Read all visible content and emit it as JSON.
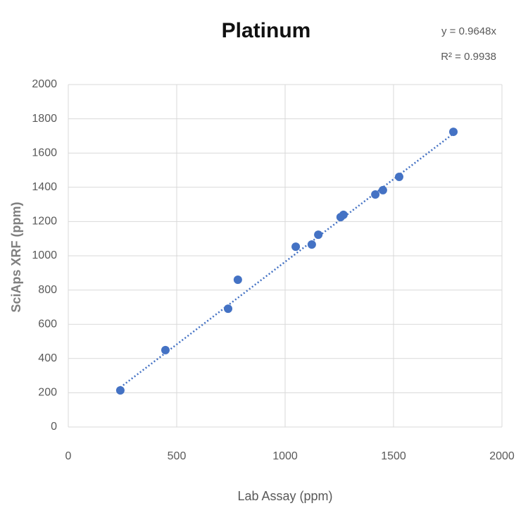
{
  "chart_data": {
    "type": "scatter",
    "title": "Platinum",
    "x_label": "Lab Assay (ppm)",
    "y_label": "SciAps XRF (ppm)",
    "series": [
      {
        "name": "Platinum",
        "color": "#4472c4",
        "x": [
          240,
          448,
          737,
          782,
          1049,
          1123,
          1153,
          1256,
          1269,
          1416,
          1451,
          1526,
          1776
        ],
        "values": [
          214,
          449,
          691,
          860,
          1053,
          1066,
          1123,
          1226,
          1239,
          1358,
          1383,
          1461,
          1724
        ]
      }
    ],
    "trendline": {
      "slope": 0.9648,
      "equation": "y = 0.9648x",
      "r_squared": "R² = 0.9938"
    },
    "xlim": [
      0,
      2000
    ],
    "xticks": [
      0,
      500,
      1000,
      1500,
      2000
    ],
    "ylim": [
      0,
      2000
    ],
    "yticks": [
      0,
      200,
      400,
      600,
      800,
      1000,
      1200,
      1400,
      1600,
      1800,
      2000
    ],
    "grid": true
  }
}
